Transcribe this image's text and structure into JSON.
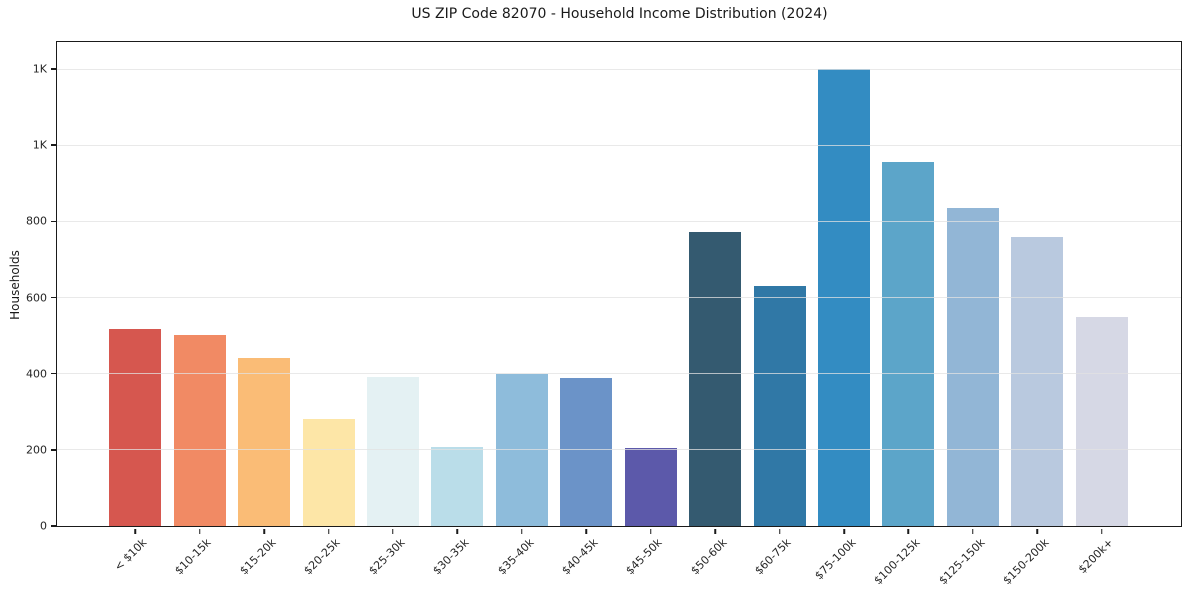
{
  "chart_data": {
    "type": "bar",
    "title": "US ZIP Code 82070 - Household Income Distribution (2024)",
    "xlabel": "",
    "ylabel": "Households",
    "ylim": [
      0,
      1271
    ],
    "grid": "horizontal-light-gray",
    "legend_position": "none",
    "categories": [
      "< $10k",
      "$10-15k",
      "$15-20k",
      "$20-25k",
      "$25-30k",
      "$30-35k",
      "$35-40k",
      "$40-45k",
      "$45-50k",
      "$50-60k",
      "$60-75k",
      "$75-100k",
      "$100-125k",
      "$125-150k",
      "$150-200k",
      "$200k+"
    ],
    "values": [
      518,
      503,
      442,
      282,
      392,
      208,
      398,
      389,
      204,
      772,
      630,
      1200,
      956,
      835,
      758,
      550
    ],
    "bar_colors": [
      "#d6574f",
      "#f18a64",
      "#fabc76",
      "#fde6a7",
      "#e4f1f3",
      "#badde9",
      "#8ebcdb",
      "#6b93c8",
      "#5c59aa",
      "#345a70",
      "#3078a6",
      "#338cc2",
      "#5ca5c9",
      "#92b6d6",
      "#b9c9df",
      "#d6d8e5"
    ],
    "yticks": [
      {
        "label": "0",
        "value": 0
      },
      {
        "label": "200",
        "value": 200
      },
      {
        "label": "400",
        "value": 400
      },
      {
        "label": "600",
        "value": 600
      },
      {
        "label": "800",
        "value": 800
      },
      {
        "label": "1K",
        "value": 1000
      },
      {
        "label": "1K",
        "value": 1200
      }
    ],
    "axis_color": "#1a1a1a",
    "tick_label_color": "#262626",
    "background_color": "#ffffff"
  }
}
